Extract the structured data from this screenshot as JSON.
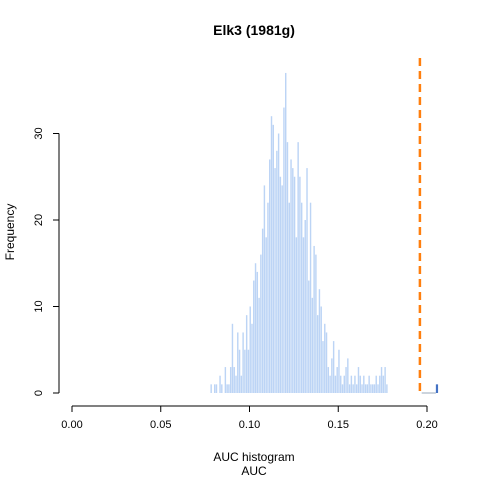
{
  "chart_data": {
    "type": "bar",
    "title": "Elk3 (1981g)",
    "subtitle": "AUC histogram",
    "xlabel": "AUC",
    "ylabel": "Frequency",
    "xlim": [
      0.0,
      0.2
    ],
    "ylim": [
      0,
      36
    ],
    "x_ticks": [
      "0.00",
      "0.05",
      "0.10",
      "0.15",
      "0.20"
    ],
    "y_ticks": [
      "0",
      "10",
      "20",
      "30"
    ],
    "bin_width": 0.001,
    "bin_starts": [
      0.078,
      0.079,
      0.08,
      0.081,
      0.082,
      0.083,
      0.084,
      0.085,
      0.086,
      0.087,
      0.088,
      0.089,
      0.09,
      0.091,
      0.092,
      0.093,
      0.094,
      0.095,
      0.096,
      0.097,
      0.098,
      0.099,
      0.1,
      0.101,
      0.102,
      0.103,
      0.104,
      0.105,
      0.106,
      0.107,
      0.108,
      0.109,
      0.11,
      0.111,
      0.112,
      0.113,
      0.114,
      0.115,
      0.116,
      0.117,
      0.118,
      0.119,
      0.12,
      0.121,
      0.122,
      0.123,
      0.124,
      0.125,
      0.126,
      0.127,
      0.128,
      0.129,
      0.13,
      0.131,
      0.132,
      0.133,
      0.134,
      0.135,
      0.136,
      0.137,
      0.138,
      0.139,
      0.14,
      0.141,
      0.142,
      0.143,
      0.144,
      0.145,
      0.146,
      0.147,
      0.148,
      0.149,
      0.15,
      0.151,
      0.152,
      0.153,
      0.154,
      0.155,
      0.156,
      0.157,
      0.158,
      0.159,
      0.16,
      0.161,
      0.162,
      0.163,
      0.164,
      0.165,
      0.166,
      0.167,
      0.168,
      0.169,
      0.17,
      0.171,
      0.172,
      0.173,
      0.174,
      0.175,
      0.176,
      0.177
    ],
    "values": [
      1,
      0,
      1,
      1,
      0,
      2,
      1,
      0,
      3,
      1,
      1,
      3,
      8,
      3,
      2,
      7,
      5,
      2,
      7,
      5,
      9,
      5,
      10,
      8,
      13,
      15,
      14,
      11,
      16,
      19,
      24,
      18,
      22,
      27,
      32,
      31,
      26,
      28,
      30,
      25,
      24,
      33,
      37,
      29,
      22,
      27,
      26,
      25,
      18,
      29,
      25,
      22,
      18,
      20,
      26,
      13,
      22,
      11,
      17,
      16,
      9,
      12,
      10,
      6,
      8,
      7,
      3,
      2,
      4,
      6,
      2,
      3,
      5,
      2,
      1,
      2,
      3,
      4,
      1,
      2,
      1,
      2,
      1,
      3,
      2,
      1,
      2,
      1,
      1,
      2,
      1,
      1,
      1,
      2,
      1,
      2,
      3,
      2,
      3,
      1
    ],
    "extra_bins": [
      {
        "x": 0.205,
        "value": 1,
        "color": "#4472c4"
      }
    ],
    "reference_line": {
      "x": 0.196,
      "color": "#ff7f0e",
      "style": "dashed"
    },
    "bar_color": "#bcd4f5"
  }
}
